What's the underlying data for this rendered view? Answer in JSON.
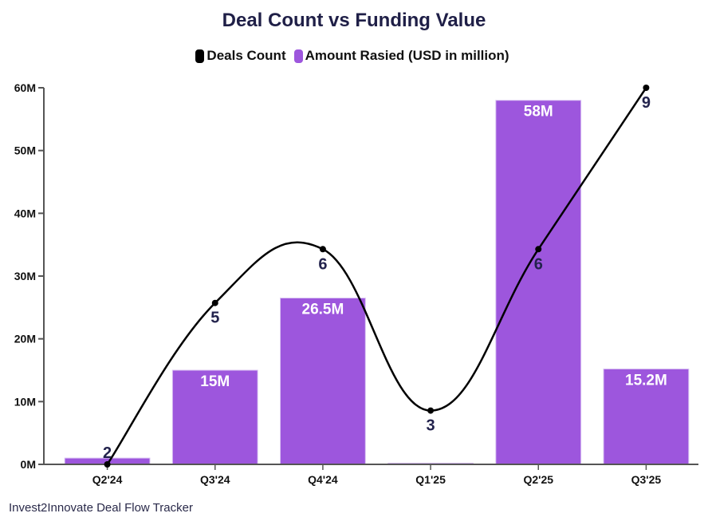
{
  "chart_data": {
    "type": "bar",
    "title": "Deal Count vs Funding Value",
    "categories": [
      "Q2'24",
      "Q3'24",
      "Q4'24",
      "Q1'25",
      "Q2'25",
      "Q3'25"
    ],
    "series": [
      {
        "name": "Amount Rasied (USD in million)",
        "type": "bar",
        "values": [
          1,
          15,
          26.5,
          0.2,
          58,
          15.2
        ],
        "labels": [
          "",
          "15M",
          "26.5M",
          "",
          "58M",
          "15.2M"
        ],
        "color": "#9d56dd"
      },
      {
        "name": "Deals Count",
        "type": "line",
        "smooth": true,
        "values": [
          2,
          5,
          6,
          3,
          6,
          9
        ],
        "labels": [
          "2",
          "5",
          "6",
          "3",
          "6",
          "9"
        ],
        "color": "#000000",
        "axis_range": [
          2,
          9
        ]
      }
    ],
    "ylim": [
      0,
      60
    ],
    "yticks": [
      0,
      10,
      20,
      30,
      40,
      50,
      60
    ],
    "ytick_labels": [
      "0M",
      "10M",
      "20M",
      "30M",
      "40M",
      "50M",
      "60M"
    ],
    "xlabel": "",
    "ylabel": "",
    "grid": false,
    "legend_position": "top-center"
  },
  "legend": [
    {
      "label": "Deals Count",
      "color": "#000000"
    },
    {
      "label": "Amount Rasied (USD in million)",
      "color": "#9d56dd"
    }
  ],
  "footer": "Invest2Innovate Deal Flow Tracker"
}
